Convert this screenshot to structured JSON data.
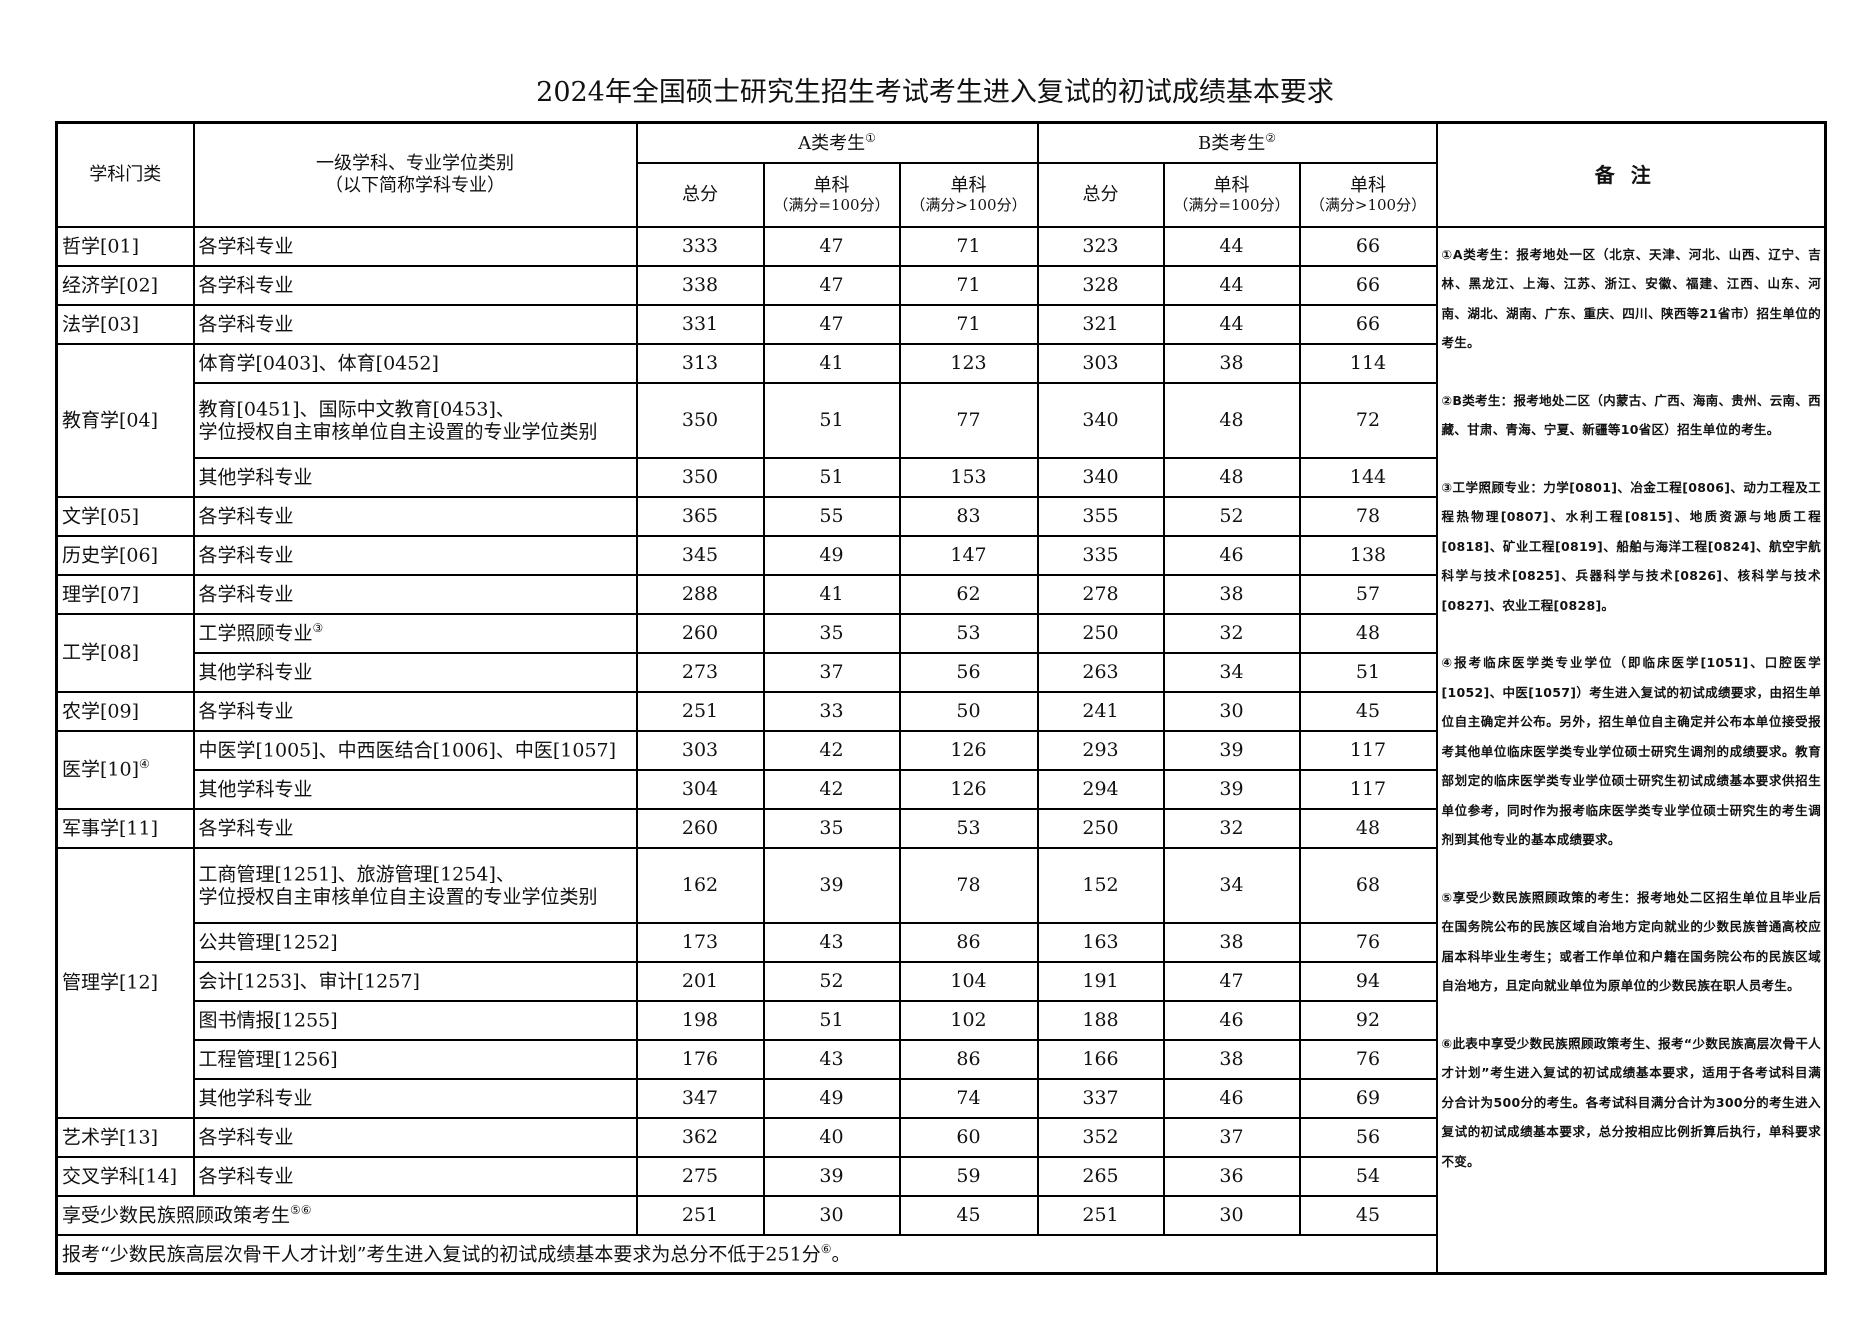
{
  "title": "2024年全国硕士研究生招生考试考生进入复试的初试成绩基本要求",
  "header": {
    "category": "学科门类",
    "subject_line1": "一级学科、专业学位类别",
    "subject_line2": "（以下简称学科专业）",
    "group_a": "A类考生",
    "group_a_sup": "①",
    "group_b": "B类考生",
    "group_b_sup": "②",
    "total": "总分",
    "single": "单科",
    "full100": "（满分=100分）",
    "fullover100": "（满分>100分）",
    "notes": "备注"
  },
  "groups": [
    {
      "category": "哲学[01]",
      "sup": "",
      "items": [
        {
          "name": "各学科专业",
          "sup": "",
          "a": [
            333,
            47,
            71
          ],
          "b": [
            323,
            44,
            66
          ]
        }
      ]
    },
    {
      "category": "经济学[02]",
      "sup": "",
      "items": [
        {
          "name": "各学科专业",
          "sup": "",
          "a": [
            338,
            47,
            71
          ],
          "b": [
            328,
            44,
            66
          ]
        }
      ]
    },
    {
      "category": "法学[03]",
      "sup": "",
      "items": [
        {
          "name": "各学科专业",
          "sup": "",
          "a": [
            331,
            47,
            71
          ],
          "b": [
            321,
            44,
            66
          ]
        }
      ]
    },
    {
      "category": "教育学[04]",
      "sup": "",
      "items": [
        {
          "name": "体育学[0403]、体育[0452]",
          "sup": "",
          "a": [
            313,
            41,
            123
          ],
          "b": [
            303,
            38,
            114
          ]
        },
        {
          "name": "教育[0451]、国际中文教育[0453]、",
          "name2": "学位授权自主审核单位自主设置的专业学位类别",
          "sup": "",
          "a": [
            350,
            51,
            77
          ],
          "b": [
            340,
            48,
            72
          ]
        },
        {
          "name": "其他学科专业",
          "sup": "",
          "a": [
            350,
            51,
            153
          ],
          "b": [
            340,
            48,
            144
          ]
        }
      ]
    },
    {
      "category": "文学[05]",
      "sup": "",
      "items": [
        {
          "name": "各学科专业",
          "sup": "",
          "a": [
            365,
            55,
            83
          ],
          "b": [
            355,
            52,
            78
          ]
        }
      ]
    },
    {
      "category": "历史学[06]",
      "sup": "",
      "items": [
        {
          "name": "各学科专业",
          "sup": "",
          "a": [
            345,
            49,
            147
          ],
          "b": [
            335,
            46,
            138
          ]
        }
      ]
    },
    {
      "category": "理学[07]",
      "sup": "",
      "items": [
        {
          "name": "各学科专业",
          "sup": "",
          "a": [
            288,
            41,
            62
          ],
          "b": [
            278,
            38,
            57
          ]
        }
      ]
    },
    {
      "category": "工学[08]",
      "sup": "",
      "items": [
        {
          "name": "工学照顾专业",
          "sup": "③",
          "a": [
            260,
            35,
            53
          ],
          "b": [
            250,
            32,
            48
          ]
        },
        {
          "name": "其他学科专业",
          "sup": "",
          "a": [
            273,
            37,
            56
          ],
          "b": [
            263,
            34,
            51
          ]
        }
      ]
    },
    {
      "category": "农学[09]",
      "sup": "",
      "items": [
        {
          "name": "各学科专业",
          "sup": "",
          "a": [
            251,
            33,
            50
          ],
          "b": [
            241,
            30,
            45
          ]
        }
      ]
    },
    {
      "category": "医学[10]",
      "sup": "④",
      "items": [
        {
          "name": "中医学[1005]、中西医结合[1006]、中医[1057]",
          "sup": "",
          "a": [
            303,
            42,
            126
          ],
          "b": [
            293,
            39,
            117
          ]
        },
        {
          "name": "其他学科专业",
          "sup": "",
          "a": [
            304,
            42,
            126
          ],
          "b": [
            294,
            39,
            117
          ]
        }
      ]
    },
    {
      "category": "军事学[11]",
      "sup": "",
      "items": [
        {
          "name": "各学科专业",
          "sup": "",
          "a": [
            260,
            35,
            53
          ],
          "b": [
            250,
            32,
            48
          ]
        }
      ]
    },
    {
      "category": "管理学[12]",
      "sup": "",
      "items": [
        {
          "name": "工商管理[1251]、旅游管理[1254]、",
          "name2": "学位授权自主审核单位自主设置的专业学位类别",
          "sup": "",
          "a": [
            162,
            39,
            78
          ],
          "b": [
            152,
            34,
            68
          ]
        },
        {
          "name": "公共管理[1252]",
          "sup": "",
          "a": [
            173,
            43,
            86
          ],
          "b": [
            163,
            38,
            76
          ]
        },
        {
          "name": "会计[1253]、审计[1257]",
          "sup": "",
          "a": [
            201,
            52,
            104
          ],
          "b": [
            191,
            47,
            94
          ]
        },
        {
          "name": "图书情报[1255]",
          "sup": "",
          "a": [
            198,
            51,
            102
          ],
          "b": [
            188,
            46,
            92
          ]
        },
        {
          "name": "工程管理[1256]",
          "sup": "",
          "a": [
            176,
            43,
            86
          ],
          "b": [
            166,
            38,
            76
          ]
        },
        {
          "name": "其他学科专业",
          "sup": "",
          "a": [
            347,
            49,
            74
          ],
          "b": [
            337,
            46,
            69
          ]
        }
      ]
    },
    {
      "category": "艺术学[13]",
      "sup": "",
      "items": [
        {
          "name": "各学科专业",
          "sup": "",
          "a": [
            362,
            40,
            60
          ],
          "b": [
            352,
            37,
            56
          ]
        }
      ]
    },
    {
      "category": "交叉学科[14]",
      "sup": "",
      "items": [
        {
          "name": "各学科专业",
          "sup": "",
          "a": [
            275,
            39,
            59
          ],
          "b": [
            265,
            36,
            54
          ]
        }
      ]
    }
  ],
  "minority": {
    "label": "享受少数民族照顾政策考生",
    "sup": "⑤⑥",
    "a": [
      251,
      30,
      45
    ],
    "b": [
      251,
      30,
      45
    ]
  },
  "footer": {
    "text": "报考“少数民族高层次骨干人才计划”考生进入复试的初试成绩基本要求为总分不低于251分",
    "sup": "⑥",
    "end": "。"
  },
  "notes": [
    "①A类考生：报考地处一区（北京、天津、河北、山西、辽宁、吉林、黑龙江、上海、江苏、浙江、安徽、福建、江西、山东、河南、湖北、湖南、广东、重庆、四川、陕西等21省市）招生单位的考生。",
    "②B类考生：报考地处二区（内蒙古、广西、海南、贵州、云南、西藏、甘肃、青海、宁夏、新疆等10省区）招生单位的考生。",
    "③工学照顾专业：力学[0801]、冶金工程[0806]、动力工程及工程热物理[0807]、水利工程[0815]、地质资源与地质工程[0818]、矿业工程[0819]、船舶与海洋工程[0824]、航空宇航科学与技术[0825]、兵器科学与技术[0826]、核科学与技术[0827]、农业工程[0828]。",
    "④报考临床医学类专业学位（即临床医学[1051]、口腔医学[1052]、中医[1057]）考生进入复试的初试成绩要求，由招生单位自主确定并公布。另外，招生单位自主确定并公布本单位接受报考其他单位临床医学类专业学位硕士研究生调剂的成绩要求。教育部划定的临床医学类专业学位硕士研究生初试成绩基本要求供招生单位参考，同时作为报考临床医学类专业学位硕士研究生的考生调剂到其他专业的基本成绩要求。",
    "⑤享受少数民族照顾政策的考生：报考地处二区招生单位且毕业后在国务院公布的民族区域自治地方定向就业的少数民族普通高校应届本科毕业生考生；或者工作单位和户籍在国务院公布的民族区域自治地方，且定向就业单位为原单位的少数民族在职人员考生。",
    "⑥此表中享受少数民族照顾政策考生、报考“少数民族高层次骨干人才计划”考生进入复试的初试成绩基本要求，适用于各考试科目满分合计为500分的考生。各考试科目满分合计为300分的考生进入复试的初试成绩基本要求，总分按相应比例折算后执行，单科要求不变。"
  ]
}
